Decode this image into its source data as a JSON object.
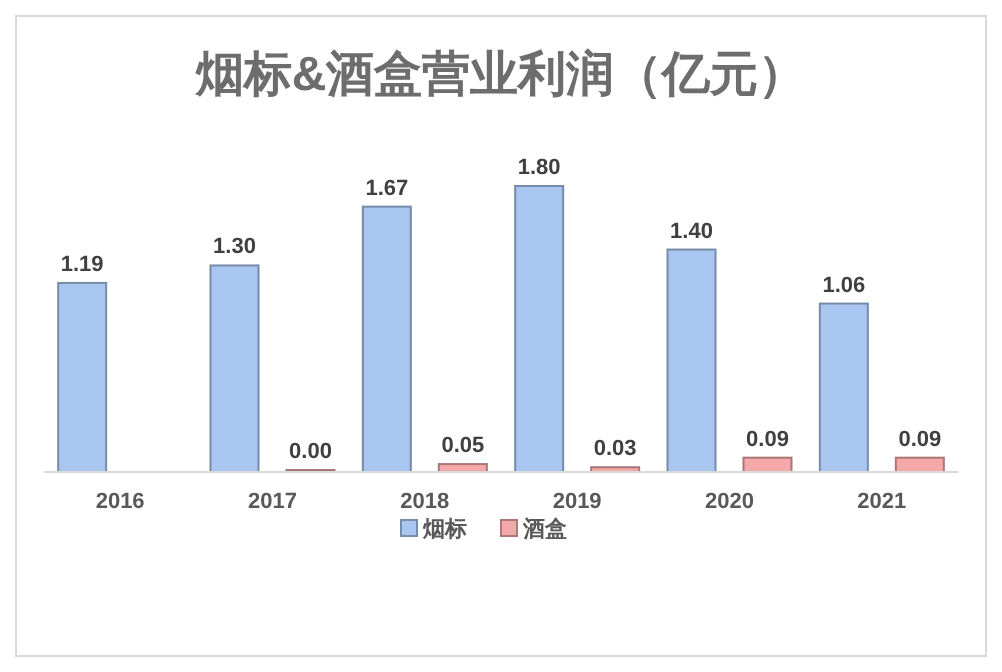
{
  "chart_data": {
    "type": "bar",
    "title": "烟标&酒盒营业利润（亿元）",
    "categories": [
      "2016",
      "2017",
      "2018",
      "2019",
      "2020",
      "2021"
    ],
    "series": [
      {
        "name": "烟标",
        "color": "#a9c6f0",
        "values": [
          1.19,
          1.3,
          1.67,
          1.8,
          1.4,
          1.06
        ],
        "value_labels": [
          "1.19",
          "1.30",
          "1.67",
          "1.80",
          "1.40",
          "1.06"
        ]
      },
      {
        "name": "酒盒",
        "color": "#f4a8a8",
        "values": [
          null,
          0.0,
          0.05,
          0.03,
          0.09,
          0.09
        ],
        "value_labels": [
          null,
          "0.00",
          "0.05",
          "0.03",
          "0.09",
          "0.09"
        ]
      }
    ],
    "legend": "bottom"
  }
}
